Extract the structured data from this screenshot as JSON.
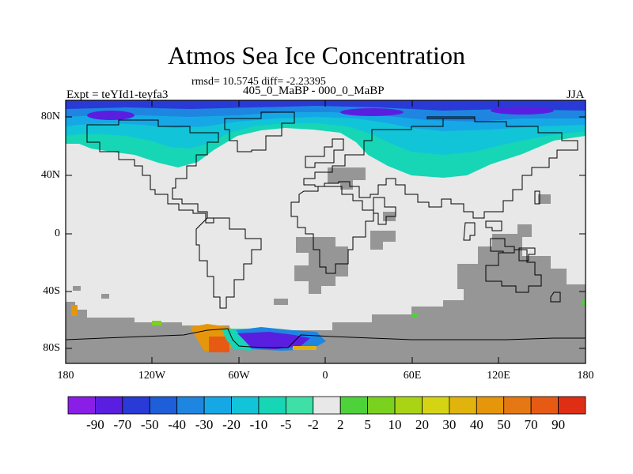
{
  "title": "Atmos Sea Ice Concentration",
  "stats": "rmsd= 10.5745 diff= -2.23395",
  "period": "405_0_MaBP - 000_0_MaBP",
  "experiment": "Expt = teYId1-teyfa3",
  "season": "JJA",
  "lat_ticks": [
    "80N",
    "40N",
    "0",
    "40S",
    "80S"
  ],
  "lon_ticks": [
    "180",
    "120W",
    "60W",
    "0",
    "60E",
    "120E",
    "180"
  ],
  "colorbar": {
    "labels": [
      "-90",
      "-70",
      "-50",
      "-40",
      "-30",
      "-20",
      "-10",
      "-5",
      "-2",
      "2",
      "5",
      "10",
      "20",
      "30",
      "40",
      "50",
      "70",
      "90"
    ],
    "colors": [
      "#8a1ee6",
      "#5a1ee0",
      "#2a3ad6",
      "#1e5ed8",
      "#1e86e0",
      "#16a8e6",
      "#12c4d8",
      "#16d6b6",
      "#3ee0a8",
      "#e8e8e8",
      "#4ed23a",
      "#7ad21e",
      "#a8d414",
      "#d4d414",
      "#e0b40c",
      "#e6960a",
      "#e67814",
      "#e65a14",
      "#e02e14"
    ]
  },
  "palette": {
    "land_gray": "#969696",
    "neutral": "#e8e8e8"
  }
}
